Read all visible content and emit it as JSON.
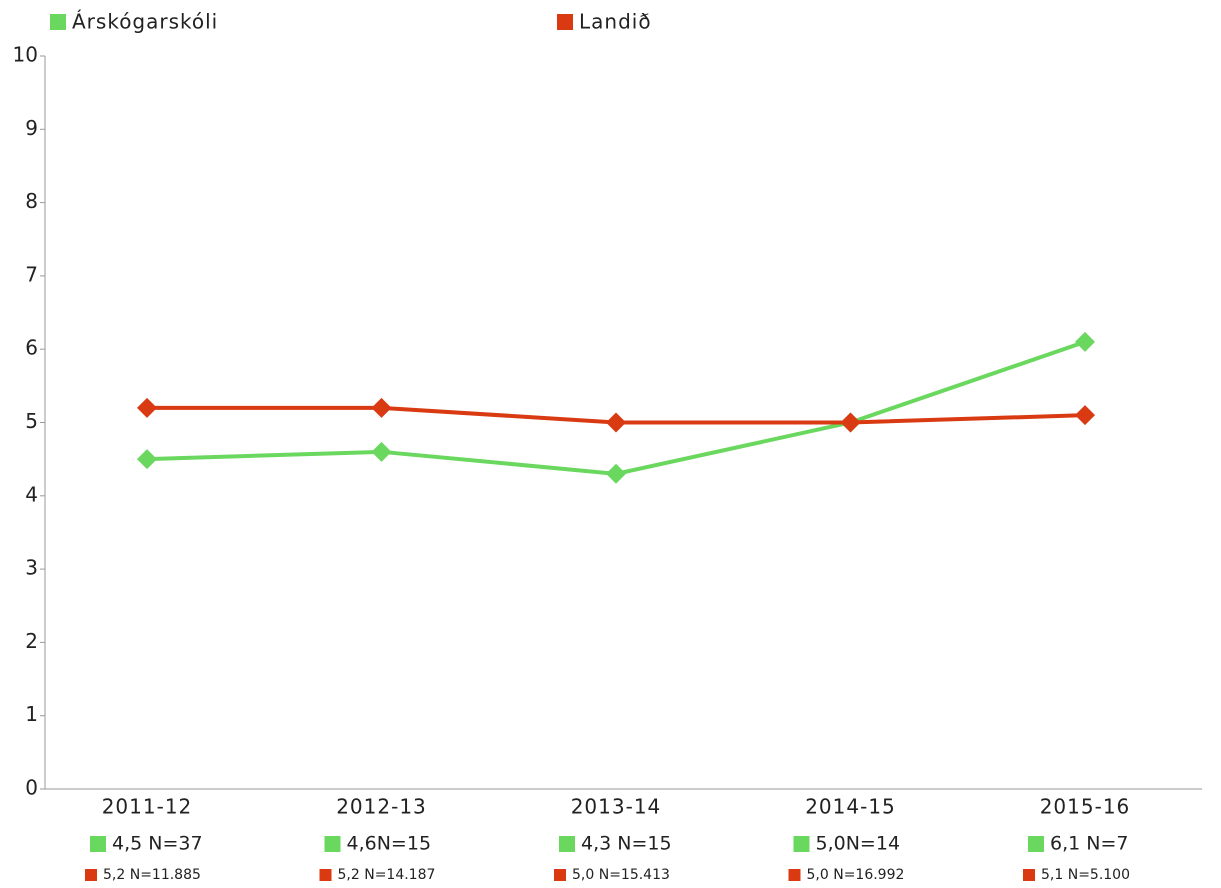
{
  "chart_data": {
    "type": "line",
    "categories": [
      "2011-12",
      "2012-13",
      "2013-14",
      "2014-15",
      "2015-16"
    ],
    "series": [
      {
        "name": "Árskógarskóli",
        "color": "#6ad85e",
        "values": [
          4.5,
          4.6,
          4.3,
          5.0,
          6.1
        ],
        "value_labels": [
          "4,5 N=37",
          "4,6N=15",
          "4,3 N=15",
          "5,0N=14",
          "6,1 N=7"
        ]
      },
      {
        "name": "Landið",
        "color": "#d93a12",
        "values": [
          5.2,
          5.2,
          5.0,
          5.0,
          5.1
        ],
        "value_labels": [
          "5,2 N=11.885",
          "5,2 N=14.187",
          "5,0 N=15.413",
          "5,0 N=16.992",
          "5,1 N=5.100"
        ]
      }
    ],
    "ylim": [
      0,
      10
    ],
    "yticks": [
      0,
      1,
      2,
      3,
      4,
      5,
      6,
      7,
      8,
      9,
      10
    ]
  }
}
